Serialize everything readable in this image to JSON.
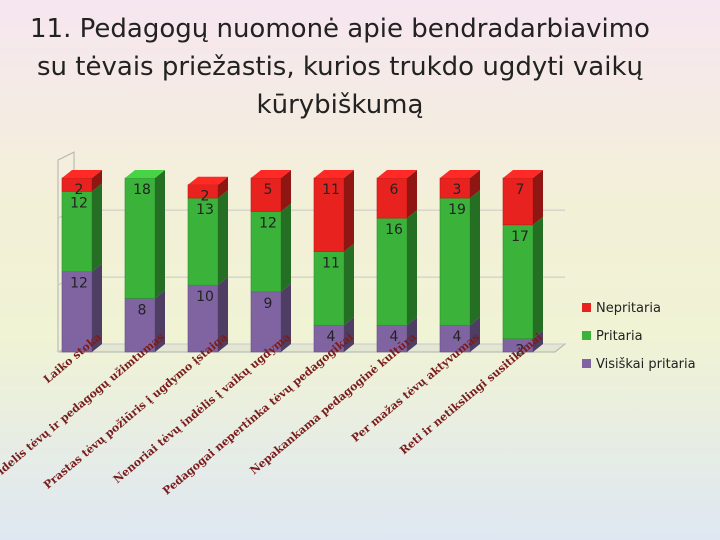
{
  "chart_data": {
    "type": "bar",
    "stacked": true,
    "three_d": true,
    "title_lines": [
      "11. Pedagogų nuomonė apie bendradarbiavimo",
      "su tėvais priežastis, kurios trukdo ugdyti vaikų",
      "kūrybiškumą"
    ],
    "categories": [
      "Laiko stoka",
      "Didelis tėvų ir pedagogų užimtumas",
      "Prastas tėvų požiūris į ugdymo įstaigą",
      "Nenoriai tėvų indėlis į vaikų ugdymą",
      "Pedagogai nepertinka tėvų pedagogikai",
      "Nepakankama pedagoginė kultūra",
      "Per mažas tėvų aktyvumas",
      "Reti ir netikslingi susitikimai"
    ],
    "category_labels_display": [
      "Laiko stoka",
      "Didelis tėvų ir pedagogų užimtumas",
      "Prastas tėvų požiūris į ugdymo įstaigą",
      "Nenoriai tėvų indėlis į vaikų ugdymą",
      "Pedagogai nepertinka tėvų pedagogikai",
      "Nepakankama pedagoginė kultūra",
      "Per mažas tėvų aktyvumas",
      "Reti ir netikslingi susitikimai"
    ],
    "series": [
      {
        "name": "Visiškai pritaria",
        "color": "#8064a2",
        "values": [
          12,
          8,
          10,
          9,
          4,
          4,
          4,
          2
        ]
      },
      {
        "name": "Pritaria",
        "color": "#3bb33b",
        "values": [
          12,
          18,
          13,
          12,
          11,
          16,
          19,
          17
        ]
      },
      {
        "name": "Nepritaria",
        "color": "#e8231f",
        "values": [
          2,
          0,
          2,
          5,
          11,
          6,
          3,
          7
        ]
      }
    ],
    "legend_order": [
      "Nepritaria",
      "Pritaria",
      "Visiškai pritaria"
    ],
    "legend_position": "right",
    "ylim": [
      0,
      30
    ]
  }
}
